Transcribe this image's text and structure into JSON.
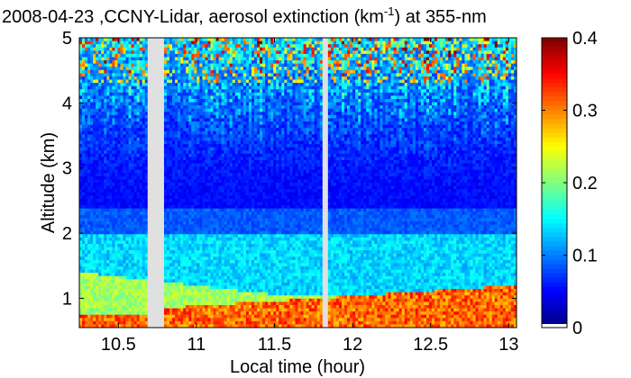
{
  "chart_data": {
    "type": "heatmap",
    "title_main": "2008-04-23 ,CCNY-Lidar, aerosol extinction (km",
    "title_sup": "-1",
    "title_tail": ") at 355-nm",
    "xlabel": "Local time (hour)",
    "ylabel": "Altitude (km)",
    "xlim": [
      10.25,
      13.05
    ],
    "ylim": [
      0.55,
      5.0
    ],
    "xticks": [
      "10.5",
      "11",
      "11.5",
      "12",
      "12.5",
      "13"
    ],
    "xtick_values": [
      10.5,
      11,
      11.5,
      12,
      12.5,
      13
    ],
    "yticks": [
      "1",
      "2",
      "3",
      "4",
      "5"
    ],
    "ytick_values": [
      1,
      2,
      3,
      4,
      5
    ],
    "colorbar": {
      "range": [
        0,
        0.4
      ],
      "ticks": [
        "0",
        "0.1",
        "0.2",
        "0.3",
        "0.4"
      ],
      "tick_values": [
        0,
        0.1,
        0.2,
        0.3,
        0.4
      ],
      "colormap": "jet"
    },
    "data_gaps_hours": [
      [
        10.69,
        10.8
      ],
      [
        11.81,
        11.84
      ]
    ],
    "layers": {
      "near_surface_max": 0.35,
      "boundary_layer_top_km_start": 1.4,
      "boundary_layer_top_km_end": 1.05,
      "upper_residual_layer_km": [
        1.45,
        2.0
      ],
      "free_troposphere_typical": 0.05,
      "upper_noise_above_km": 4.3
    },
    "grid": false,
    "legend": "colorbar-right"
  },
  "colors": {
    "background": "#ffffff",
    "gap": "#e0e0e0",
    "axis": "#000000"
  }
}
